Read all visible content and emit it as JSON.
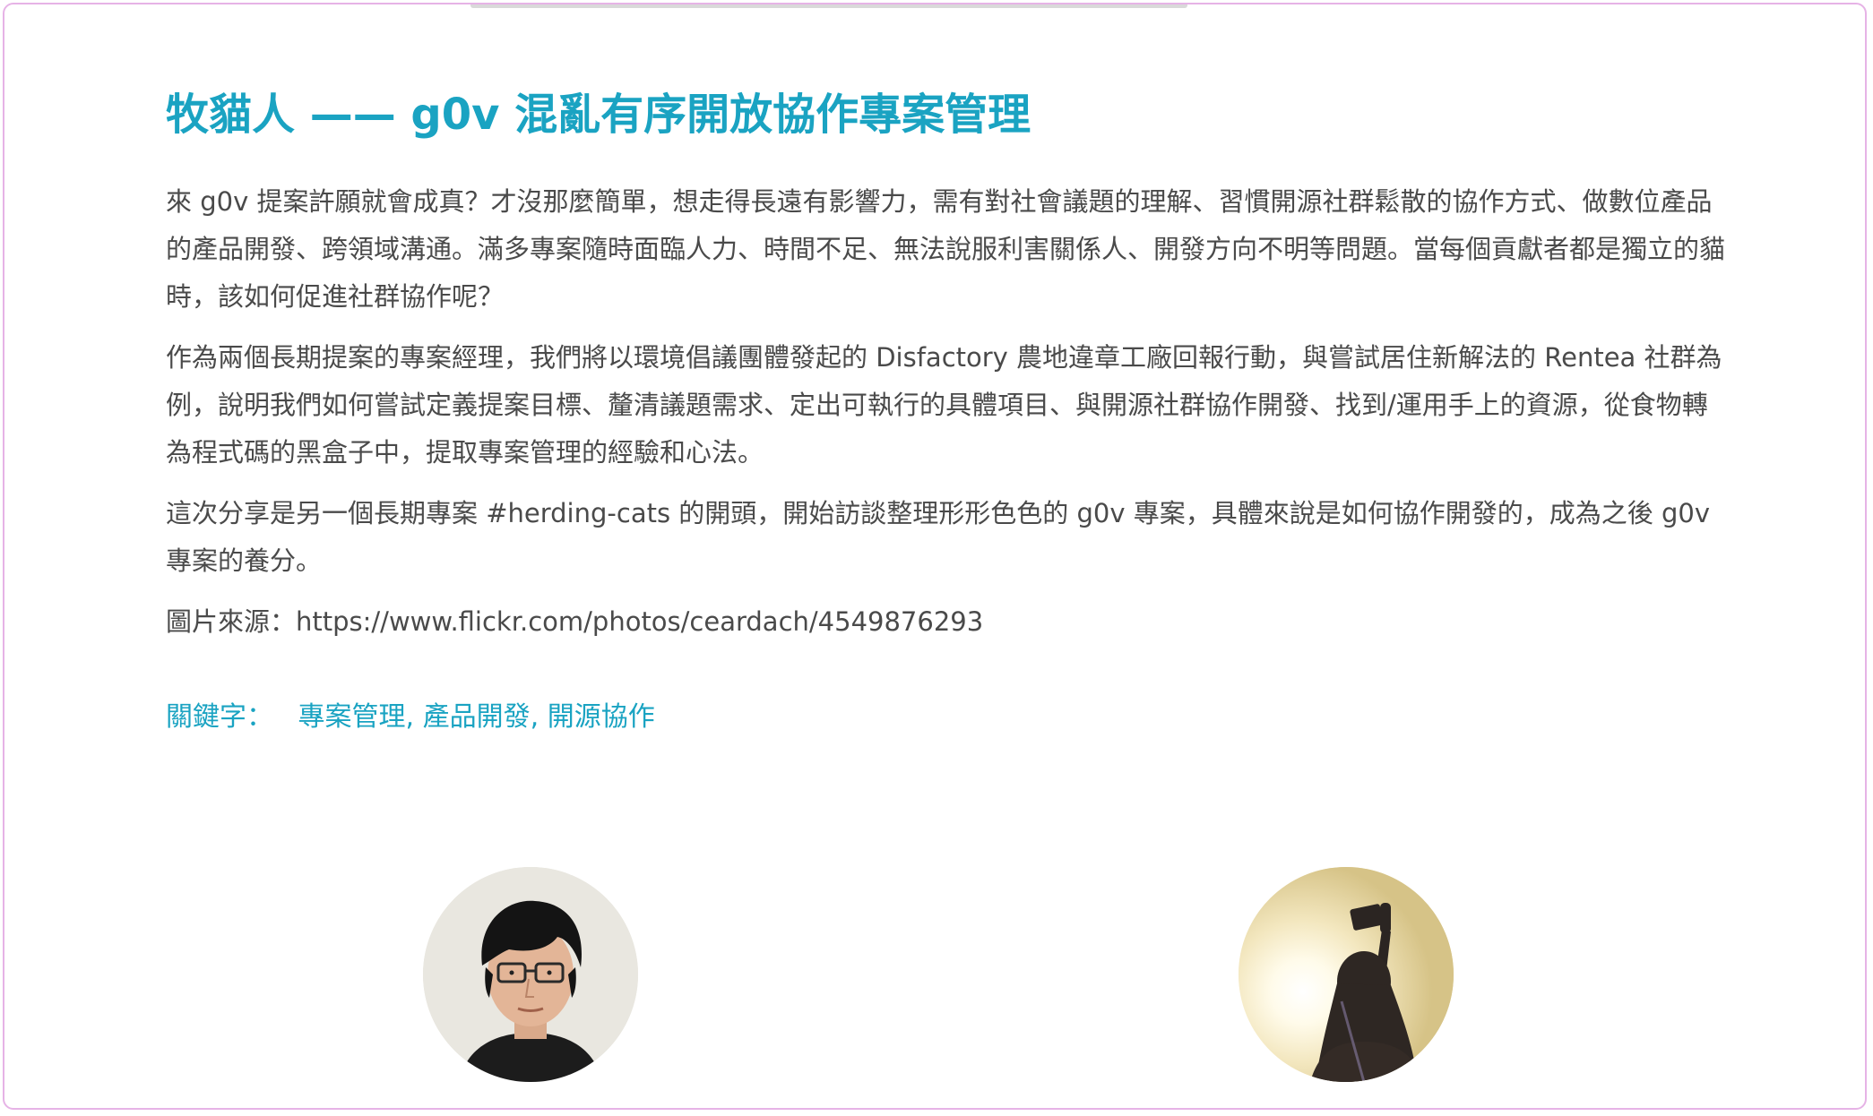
{
  "session": {
    "title": "牧貓人 —— g0v 混亂有序開放協作專案管理",
    "paragraphs": [
      "來 g0v 提案許願就會成真？才沒那麼簡單，想走得長遠有影響力，需有對社會議題的理解、習慣開源社群鬆散的協作方式、做數位產品的產品開發、跨領域溝通。滿多專案隨時面臨人力、時間不足、無法說服利害關係人、開發方向不明等問題。當每個貢獻者都是獨立的貓時，該如何促進社群協作呢？",
      "作為兩個長期提案的專案經理，我們將以環境倡議團體發起的 Disfactory 農地違章工廠回報行動，與嘗試居住新解法的 Rentea 社群為例，說明我們如何嘗試定義提案目標、釐清議題需求、定出可執行的具體項目、與開源社群協作開發、找到/運用手上的資源，從食物轉為程式碼的黑盒子中，提取專案管理的經驗和心法。",
      "這次分享是另一個長期專案 #herding-cats 的開頭，開始訪談整理形形色色的 g0v 專案，具體來說是如何協作開發的，成為之後 g0v 專案的養分。",
      "圖片來源：https://www.flickr.com/photos/ceardach/4549876293"
    ],
    "keywords_label": "關鍵字：",
    "keywords": "專案管理, 產品開發, 開源協作"
  },
  "speakers": [
    {
      "icon": "speaker-avatar-man-glasses-icon"
    },
    {
      "icon": "speaker-avatar-silhouette-sunlight-icon"
    }
  ]
}
